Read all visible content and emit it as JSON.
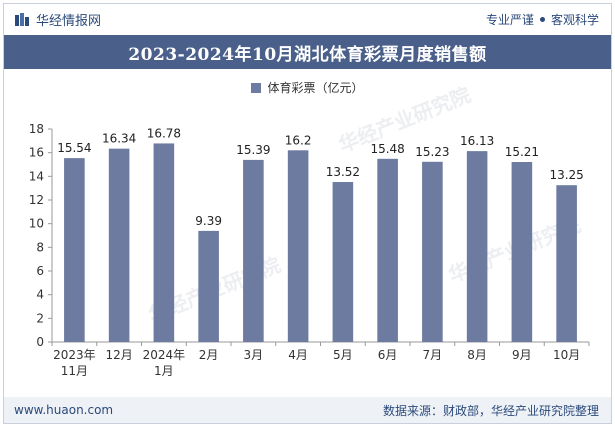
{
  "header": {
    "brand": "华经情报网",
    "tagline_left": "专业严谨",
    "tagline_right": "客观科学"
  },
  "title": "2023-2024年10月湖北体育彩票月度销售额",
  "watermark": "华经产业研究院",
  "footer": {
    "website": "www.huaon.com",
    "source": "数据来源：财政部，华经产业研究院整理"
  },
  "colors": {
    "bar": "#6c7b9f",
    "title_bg": "#4a5f8a",
    "brand_text": "#2b4a7a"
  },
  "chart_data": {
    "type": "bar",
    "categories": [
      "2023年11月",
      "12月",
      "2024年1月",
      "2月",
      "3月",
      "4月",
      "5月",
      "6月",
      "7月",
      "8月",
      "9月",
      "10月"
    ],
    "category_lines": [
      [
        "2023年",
        "11月"
      ],
      [
        "12月"
      ],
      [
        "2024年",
        "1月"
      ],
      [
        "2月"
      ],
      [
        "3月"
      ],
      [
        "4月"
      ],
      [
        "5月"
      ],
      [
        "6月"
      ],
      [
        "7月"
      ],
      [
        "8月"
      ],
      [
        "9月"
      ],
      [
        "10月"
      ]
    ],
    "series": [
      {
        "name": "体育彩票（亿元）",
        "values": [
          15.54,
          16.34,
          16.78,
          9.39,
          15.39,
          16.2,
          13.52,
          15.48,
          15.23,
          16.13,
          15.21,
          13.25
        ],
        "labels": [
          "15.54",
          "16.34",
          "16.78",
          "9.39",
          "15.39",
          "16.2",
          "13.52",
          "15.48",
          "15.23",
          "16.13",
          "15.21",
          "13.25"
        ]
      }
    ],
    "ylim": [
      0,
      18
    ],
    "yticks": [
      0,
      2,
      4,
      6,
      8,
      10,
      12,
      14,
      16,
      18
    ],
    "grid": false,
    "legend_position": "top-center"
  }
}
